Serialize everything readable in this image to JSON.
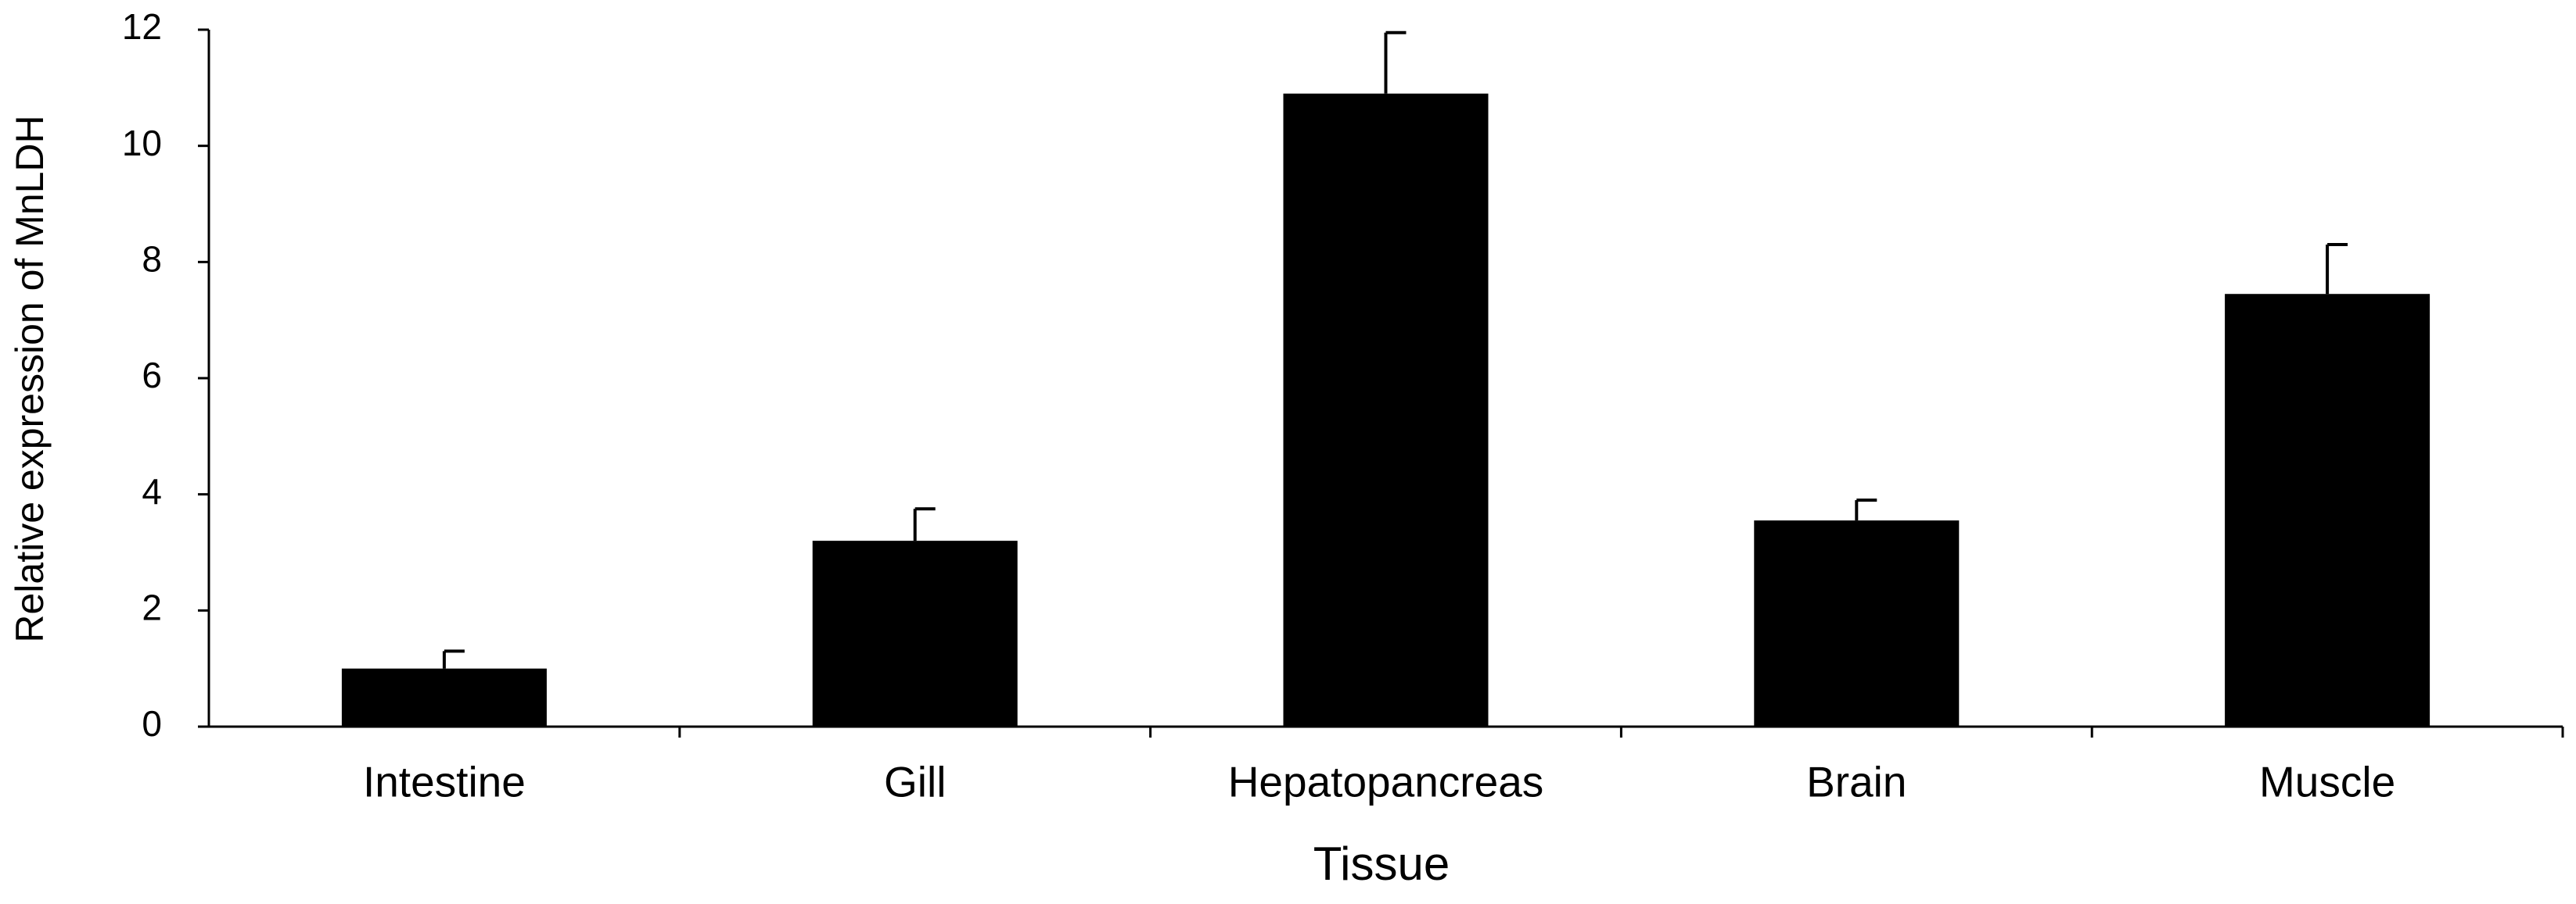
{
  "chart_data": {
    "type": "bar",
    "x_label": "Tissue",
    "y_label": "Relative expression of MnLDH",
    "categories": [
      "Intestine",
      "Gill",
      "Hepatopancreas",
      "Brain",
      "Muscle"
    ],
    "values": [
      1.0,
      3.2,
      10.9,
      3.55,
      7.45
    ],
    "errors": [
      0.3,
      0.55,
      1.05,
      0.35,
      0.85
    ],
    "color": "#000000",
    "ylim": [
      0,
      12
    ],
    "yticks": [
      0,
      2,
      4,
      6,
      8,
      10,
      12
    ],
    "grid": false
  }
}
